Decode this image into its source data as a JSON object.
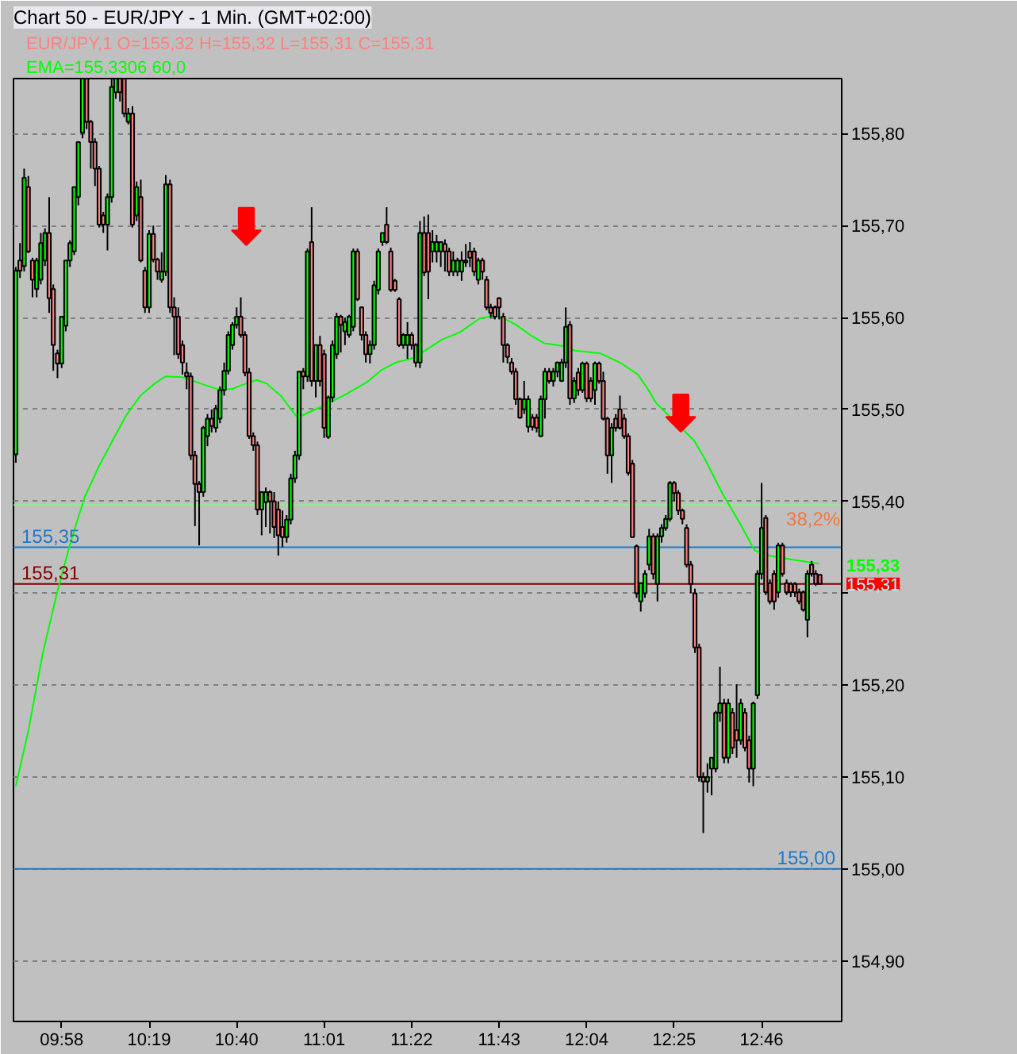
{
  "chart_data": {
    "type": "candlestick",
    "title": "Chart 50 - EUR/JPY - 1 Min. (GMT+02:00)",
    "annotations": [
      "EUR/JPY,1 O=155,32 H=155,32 L=155,31 C=155,31",
      "EMA=155,3306 60,0",
      {
        "text": "38,2%",
        "x": 12.973,
        "y": 155.396
      },
      {
        "text": "155,31",
        "x": 13.087,
        "y": 155.31
      }
    ],
    "xlim": [
      9.774,
      13.087
    ],
    "ylim": [
      154.834,
      155.86
    ],
    "xticks": [
      {
        "value": 9.9667,
        "label": "09:58"
      },
      {
        "value": 10.3167,
        "label": "10:19"
      },
      {
        "value": 10.6667,
        "label": "10:40"
      },
      {
        "value": 11.0167,
        "label": "11:01"
      },
      {
        "value": 11.3667,
        "label": "11:22"
      },
      {
        "value": 11.7167,
        "label": "11:43"
      },
      {
        "value": 12.0667,
        "label": "12:04"
      },
      {
        "value": 12.4167,
        "label": "12:25"
      },
      {
        "value": 12.7667,
        "label": "12:46"
      }
    ],
    "yticks": [
      {
        "value": 155.8,
        "label": "155,80"
      },
      {
        "value": 155.7,
        "label": "155,70"
      },
      {
        "value": 155.6,
        "label": "155,60"
      },
      {
        "value": 155.5,
        "label": "155,50"
      },
      {
        "value": 155.4,
        "label": "155,40"
      },
      {
        "value": 155.3,
        "label": null
      },
      {
        "value": 155.2,
        "label": "155,20"
      },
      {
        "value": 155.1,
        "label": "155,10"
      },
      {
        "value": 155.0,
        "label": "155,00"
      },
      {
        "value": 154.9,
        "label": "154,90"
      }
    ],
    "grid": "y",
    "ref_lines": [
      {
        "axis": "y",
        "value": 155.396,
        "color": "#90ee90"
      },
      {
        "axis": "y",
        "value": 155.35,
        "label": "155,35",
        "color": "#1e78c8"
      },
      {
        "axis": "y",
        "value": 155.31,
        "label": "155,31",
        "color": "#800000"
      },
      {
        "axis": "y",
        "value": 155.0,
        "label": "155,00",
        "color": "#1e78c8"
      }
    ],
    "x": [
      9.7833,
      9.8,
      9.8167,
      9.8333,
      9.85,
      9.8667,
      9.8833,
      9.9,
      9.9167,
      9.9333,
      9.95,
      9.9667,
      9.9833,
      10.0,
      10.0167,
      10.0333,
      10.05,
      10.0667,
      10.0833,
      10.1,
      10.1167,
      10.1333,
      10.15,
      10.1667,
      10.1833,
      10.2,
      10.2167,
      10.2333,
      10.25,
      10.2667,
      10.2833,
      10.3,
      10.3167,
      10.3333,
      10.35,
      10.3667,
      10.3833,
      10.4,
      10.4167,
      10.4333,
      10.45,
      10.4667,
      10.4833,
      10.5,
      10.5167,
      10.5333,
      10.55,
      10.5667,
      10.5833,
      10.6,
      10.6167,
      10.6333,
      10.65,
      10.6667,
      10.6833,
      10.7,
      10.7167,
      10.7333,
      10.75,
      10.7667,
      10.7833,
      10.8,
      10.8167,
      10.8333,
      10.85,
      10.8667,
      10.8833,
      10.9,
      10.9167,
      10.9333,
      10.95,
      10.9667,
      10.9833,
      11.0,
      11.0167,
      11.0333,
      11.05,
      11.0667,
      11.0833,
      11.1,
      11.1167,
      11.1333,
      11.15,
      11.1667,
      11.1833,
      11.2,
      11.2167,
      11.2333,
      11.25,
      11.2667,
      11.2833,
      11.3,
      11.3167,
      11.3333,
      11.35,
      11.3667,
      11.3833,
      11.4,
      11.4167,
      11.4333,
      11.45,
      11.4667,
      11.4833,
      11.5,
      11.5167,
      11.5333,
      11.55,
      11.5667,
      11.5833,
      11.6,
      11.6167,
      11.6333,
      11.65,
      11.6667,
      11.6833,
      11.7,
      11.7167,
      11.7333,
      11.75,
      11.7667,
      11.7833,
      11.8,
      11.8167,
      11.8333,
      11.85,
      11.8667,
      11.8833,
      11.9,
      11.9167,
      11.9333,
      11.95,
      11.9667,
      11.9833,
      12.0,
      12.0167,
      12.0333,
      12.05,
      12.0667,
      12.0833,
      12.1,
      12.1167,
      12.1333,
      12.15,
      12.1667,
      12.1833,
      12.2,
      12.2167,
      12.2333,
      12.25,
      12.2667,
      12.2833,
      12.3,
      12.3167,
      12.3333,
      12.35,
      12.3667,
      12.3833,
      12.4,
      12.4167,
      12.4333,
      12.45,
      12.4667,
      12.4833,
      12.5,
      12.5167,
      12.5333,
      12.55,
      12.5667,
      12.5833,
      12.6,
      12.6167,
      12.6333,
      12.65,
      12.6667,
      12.6833,
      12.7,
      12.7167,
      12.7333,
      12.75,
      12.7667,
      12.7833,
      12.8,
      12.8167,
      12.8333,
      12.85,
      12.8667,
      12.8833,
      12.9,
      12.9167,
      12.9333,
      12.95,
      12.9667,
      12.9833,
      13.0
    ],
    "ohlc": [
      [
        155.451,
        155.655,
        155.442,
        155.651
      ],
      [
        155.662,
        155.681,
        155.643,
        155.651
      ],
      [
        155.656,
        155.762,
        155.65,
        155.752
      ],
      [
        155.742,
        155.754,
        155.67,
        155.672
      ],
      [
        155.662,
        155.665,
        155.622,
        155.641
      ],
      [
        155.631,
        155.665,
        155.622,
        155.662
      ],
      [
        155.641,
        155.692,
        155.636,
        155.681
      ],
      [
        155.662,
        155.697,
        155.656,
        155.692
      ],
      [
        155.692,
        155.731,
        155.605,
        155.621
      ],
      [
        155.631,
        155.636,
        155.542,
        155.57
      ],
      [
        155.561,
        155.565,
        155.534,
        155.55
      ],
      [
        155.55,
        155.601,
        155.545,
        155.601
      ],
      [
        155.591,
        155.662,
        155.585,
        155.662
      ],
      [
        155.662,
        155.684,
        155.655,
        155.681
      ],
      [
        155.672,
        155.742,
        155.668,
        155.742
      ],
      [
        155.731,
        155.791,
        155.722,
        155.791
      ],
      [
        155.801,
        155.86,
        155.795,
        155.86
      ],
      [
        155.86,
        155.86,
        155.805,
        155.813
      ],
      [
        155.813,
        155.815,
        155.762,
        155.791
      ],
      [
        155.791,
        155.795,
        155.743,
        155.762
      ],
      [
        155.762,
        155.765,
        155.698,
        155.701
      ],
      [
        155.711,
        155.715,
        155.692,
        155.701
      ],
      [
        155.701,
        155.735,
        155.673,
        155.731
      ],
      [
        155.731,
        155.86,
        155.725,
        155.851
      ],
      [
        155.845,
        155.86,
        155.838,
        155.86
      ],
      [
        155.86,
        155.86,
        155.835,
        155.845
      ],
      [
        155.86,
        155.86,
        155.818,
        155.822
      ],
      [
        155.813,
        155.828,
        155.81,
        155.822
      ],
      [
        155.822,
        155.83,
        155.698,
        155.701
      ],
      [
        155.711,
        155.748,
        155.705,
        155.742
      ],
      [
        155.731,
        155.75,
        155.66,
        155.662
      ],
      [
        155.651,
        155.655,
        155.605,
        155.611
      ],
      [
        155.611,
        155.695,
        155.605,
        155.691
      ],
      [
        155.691,
        155.7,
        155.66,
        155.663
      ],
      [
        155.663,
        155.665,
        155.641,
        155.65
      ],
      [
        155.641,
        155.671,
        155.638,
        155.65
      ],
      [
        155.65,
        155.755,
        155.645,
        155.745
      ],
      [
        155.745,
        155.75,
        155.605,
        155.611
      ],
      [
        155.611,
        155.622,
        155.559,
        155.601
      ],
      [
        155.601,
        155.611,
        155.555,
        155.56
      ],
      [
        155.57,
        155.575,
        155.538,
        155.551
      ],
      [
        155.54,
        155.551,
        155.522,
        155.536
      ],
      [
        155.536,
        155.54,
        155.445,
        155.45
      ],
      [
        155.45,
        155.455,
        155.373,
        155.419
      ],
      [
        155.419,
        155.422,
        155.352,
        155.41
      ],
      [
        155.41,
        155.482,
        155.405,
        155.48
      ],
      [
        155.471,
        155.495,
        155.46,
        155.49
      ],
      [
        155.49,
        155.5,
        155.475,
        155.482
      ],
      [
        155.48,
        155.505,
        155.475,
        155.501
      ],
      [
        155.49,
        155.525,
        155.485,
        155.521
      ],
      [
        155.521,
        155.551,
        155.515,
        155.542
      ],
      [
        155.542,
        155.585,
        155.538,
        155.581
      ],
      [
        155.57,
        155.595,
        155.565,
        155.592
      ],
      [
        155.592,
        155.611,
        155.588,
        155.601
      ],
      [
        155.601,
        155.622,
        155.578,
        155.581
      ],
      [
        155.581,
        155.585,
        155.536,
        155.54
      ],
      [
        155.54,
        155.545,
        155.468,
        155.471
      ],
      [
        155.471,
        155.475,
        155.455,
        155.461
      ],
      [
        155.461,
        155.465,
        155.385,
        155.391
      ],
      [
        155.391,
        155.41,
        155.363,
        155.41
      ],
      [
        155.399,
        155.415,
        155.372,
        155.41
      ],
      [
        155.41,
        155.412,
        155.365,
        155.4
      ],
      [
        155.4,
        155.41,
        155.36,
        155.372
      ],
      [
        155.391,
        155.4,
        155.341,
        155.363
      ],
      [
        155.372,
        155.39,
        155.35,
        155.361
      ],
      [
        155.361,
        155.385,
        155.355,
        155.38
      ],
      [
        155.38,
        155.43,
        155.375,
        155.425
      ],
      [
        155.425,
        155.455,
        155.42,
        155.45
      ],
      [
        155.45,
        155.541,
        155.445,
        155.541
      ],
      [
        155.541,
        155.545,
        155.522,
        155.536
      ],
      [
        155.536,
        155.675,
        155.53,
        155.672
      ],
      [
        155.682,
        155.72,
        155.525,
        155.531
      ],
      [
        155.531,
        155.57,
        155.513,
        155.57
      ],
      [
        155.57,
        155.58,
        155.525,
        155.531
      ],
      [
        155.56,
        155.565,
        155.469,
        155.48
      ],
      [
        155.47,
        155.515,
        155.468,
        155.513
      ],
      [
        155.513,
        155.575,
        155.508,
        155.57
      ],
      [
        155.56,
        155.605,
        155.555,
        155.601
      ],
      [
        155.601,
        155.603,
        155.562,
        155.592
      ],
      [
        155.585,
        155.6,
        155.57,
        155.595
      ],
      [
        155.581,
        155.603,
        155.578,
        155.601
      ],
      [
        155.59,
        155.675,
        155.585,
        155.672
      ],
      [
        155.672,
        155.675,
        155.618,
        155.62
      ],
      [
        155.611,
        155.612,
        155.575,
        155.581
      ],
      [
        155.581,
        155.585,
        155.551,
        155.56
      ],
      [
        155.56,
        155.575,
        155.55,
        155.57
      ],
      [
        155.57,
        155.64,
        155.565,
        155.635
      ],
      [
        155.63,
        155.675,
        155.625,
        155.672
      ],
      [
        155.682,
        155.692,
        155.678,
        155.692
      ],
      [
        155.701,
        155.72,
        155.68,
        155.682
      ],
      [
        155.672,
        155.676,
        155.628,
        155.63
      ],
      [
        155.64,
        155.642,
        155.628,
        155.63
      ],
      [
        155.62,
        155.622,
        155.568,
        155.57
      ],
      [
        155.57,
        155.583,
        155.566,
        155.581
      ],
      [
        155.57,
        155.595,
        155.555,
        155.581
      ],
      [
        155.581,
        155.584,
        155.565,
        155.57
      ],
      [
        155.551,
        155.572,
        155.546,
        155.57
      ],
      [
        155.551,
        155.705,
        155.545,
        155.692
      ],
      [
        155.692,
        155.71,
        155.645,
        155.649
      ],
      [
        155.692,
        155.712,
        155.62,
        155.65
      ],
      [
        155.672,
        155.695,
        155.66,
        155.682
      ],
      [
        155.672,
        155.69,
        155.66,
        155.682
      ],
      [
        155.672,
        155.682,
        155.655,
        155.682
      ],
      [
        155.68,
        155.685,
        155.65,
        155.672
      ],
      [
        155.672,
        155.676,
        155.645,
        155.65
      ],
      [
        155.65,
        155.672,
        155.645,
        155.662
      ],
      [
        155.65,
        155.665,
        155.645,
        155.662
      ],
      [
        155.65,
        155.672,
        155.64,
        155.662
      ],
      [
        155.662,
        155.68,
        155.655,
        155.66
      ],
      [
        155.672,
        155.682,
        155.655,
        155.665
      ],
      [
        155.672,
        155.676,
        155.645,
        155.65
      ],
      [
        155.641,
        155.665,
        155.636,
        155.662
      ],
      [
        155.662,
        155.665,
        155.641,
        155.65
      ],
      [
        155.641,
        155.645,
        155.608,
        155.611
      ],
      [
        155.611,
        155.615,
        155.6,
        155.605
      ],
      [
        155.611,
        155.613,
        155.598,
        155.601
      ],
      [
        155.621,
        155.622,
        155.598,
        155.611
      ],
      [
        155.601,
        155.605,
        155.551,
        155.57
      ],
      [
        155.57,
        155.572,
        155.55,
        155.557
      ],
      [
        155.551,
        155.556,
        155.538,
        155.541
      ],
      [
        155.541,
        155.545,
        155.505,
        155.511
      ],
      [
        155.511,
        155.513,
        155.49,
        155.491
      ],
      [
        155.5,
        155.531,
        155.495,
        155.511
      ],
      [
        155.481,
        155.515,
        155.475,
        155.511
      ],
      [
        155.491,
        155.495,
        155.477,
        155.481
      ],
      [
        155.491,
        155.495,
        155.475,
        155.48
      ],
      [
        155.471,
        155.515,
        155.47,
        155.511
      ],
      [
        155.511,
        155.545,
        155.49,
        155.541
      ],
      [
        155.541,
        155.545,
        155.528,
        155.531
      ],
      [
        155.531,
        155.545,
        155.525,
        155.541
      ],
      [
        155.541,
        155.552,
        155.535,
        155.551
      ],
      [
        155.531,
        155.555,
        155.53,
        155.551
      ],
      [
        155.551,
        155.611,
        155.545,
        155.59
      ],
      [
        155.592,
        155.596,
        155.505,
        155.512
      ],
      [
        155.512,
        155.535,
        155.507,
        155.531
      ],
      [
        155.54,
        155.545,
        155.515,
        155.521
      ],
      [
        155.521,
        155.552,
        155.518,
        155.55
      ],
      [
        155.55,
        155.552,
        155.508,
        155.512
      ],
      [
        155.531,
        155.535,
        155.508,
        155.512
      ],
      [
        155.521,
        155.552,
        155.505,
        155.55
      ],
      [
        155.55,
        155.552,
        155.528,
        155.531
      ],
      [
        155.531,
        155.541,
        155.488,
        155.49
      ],
      [
        155.49,
        155.492,
        155.43,
        155.45
      ],
      [
        155.45,
        155.485,
        155.42,
        155.48
      ],
      [
        155.49,
        155.495,
        155.476,
        155.48
      ],
      [
        155.5,
        155.515,
        155.478,
        155.48
      ],
      [
        155.49,
        155.495,
        155.468,
        155.471
      ],
      [
        155.471,
        155.474,
        155.428,
        155.431
      ],
      [
        155.441,
        155.445,
        155.36,
        155.361
      ],
      [
        155.351,
        155.353,
        155.295,
        155.3
      ],
      [
        155.291,
        155.311,
        155.28,
        155.311
      ],
      [
        155.3,
        155.325,
        155.295,
        155.321
      ],
      [
        155.331,
        155.37,
        155.325,
        155.362
      ],
      [
        155.362,
        155.365,
        155.315,
        155.321
      ],
      [
        155.31,
        155.365,
        155.291,
        155.362
      ],
      [
        155.362,
        155.375,
        155.355,
        155.371
      ],
      [
        155.371,
        155.385,
        155.368,
        155.381
      ],
      [
        155.381,
        155.422,
        155.378,
        155.42
      ],
      [
        155.42,
        155.422,
        155.4,
        155.409
      ],
      [
        155.409,
        155.412,
        155.385,
        155.39
      ],
      [
        155.39,
        155.392,
        155.375,
        155.381
      ],
      [
        155.371,
        155.375,
        155.328,
        155.331
      ],
      [
        155.331,
        155.335,
        155.3,
        155.31
      ],
      [
        155.3,
        155.305,
        155.235,
        155.241
      ],
      [
        155.241,
        155.245,
        155.095,
        155.1
      ],
      [
        155.1,
        155.105,
        155.039,
        155.095
      ],
      [
        155.095,
        155.115,
        155.083,
        155.1
      ],
      [
        155.109,
        155.121,
        155.08,
        155.121
      ],
      [
        155.109,
        155.172,
        155.105,
        155.17
      ],
      [
        155.17,
        155.22,
        155.16,
        155.18
      ],
      [
        155.18,
        155.185,
        155.115,
        155.121
      ],
      [
        155.121,
        155.185,
        155.115,
        155.18
      ],
      [
        155.17,
        155.175,
        155.125,
        155.132
      ],
      [
        155.151,
        155.201,
        155.121,
        155.14
      ],
      [
        155.14,
        155.185,
        155.135,
        155.18
      ],
      [
        155.17,
        155.175,
        155.128,
        155.132
      ],
      [
        155.14,
        155.145,
        155.094,
        155.109
      ],
      [
        155.109,
        155.182,
        155.09,
        155.18
      ],
      [
        155.189,
        155.325,
        155.185,
        155.321
      ],
      [
        155.321,
        155.42,
        155.315,
        155.371
      ],
      [
        155.382,
        155.385,
        155.298,
        155.301
      ],
      [
        155.311,
        155.315,
        155.288,
        155.291
      ],
      [
        155.321,
        155.325,
        155.282,
        155.291
      ],
      [
        155.301,
        155.355,
        155.295,
        155.352
      ],
      [
        155.352,
        155.355,
        155.318,
        155.321
      ],
      [
        155.311,
        155.315,
        155.298,
        155.301
      ],
      [
        155.31,
        155.312,
        155.296,
        155.301
      ],
      [
        155.31,
        155.312,
        155.296,
        155.301
      ],
      [
        155.301,
        155.305,
        155.288,
        155.291
      ],
      [
        155.301,
        155.303,
        155.28,
        155.282
      ],
      [
        155.271,
        155.325,
        155.252,
        155.321
      ],
      [
        155.331,
        155.335,
        155.318,
        155.321
      ],
      [
        155.321,
        155.325,
        155.308,
        155.31
      ],
      [
        155.32,
        155.32,
        155.31,
        155.31
      ]
    ],
    "colors": [
      "#00ff00",
      "#ff8080",
      "#00ff00",
      "#ff8080",
      "#ff8080",
      "#00ff00",
      "#00ff00",
      "#00ff00",
      "#ff8080",
      "#ff8080",
      "#ff8080",
      "#00ff00",
      "#00ff00",
      "#00ff00",
      "#00ff00",
      "#00ff00",
      "#00ff00",
      "#ff8080",
      "#ff8080",
      "#ff8080",
      "#ff8080",
      "#ff8080",
      "#00ff00",
      "#00ff00",
      "#00ff00",
      "#ff8080",
      "#ff8080",
      "#00ff00",
      "#ff8080",
      "#00ff00",
      "#ff8080",
      "#ff8080",
      "#00ff00",
      "#ff8080",
      "#ff8080",
      "#00ff00",
      "#00ff00",
      "#ff8080",
      "#ff8080",
      "#ff8080",
      "#ff8080",
      "#ff8080",
      "#ff8080",
      "#ff8080",
      "#ff8080",
      "#00ff00",
      "#00ff00",
      "#ff8080",
      "#00ff00",
      "#00ff00",
      "#00ff00",
      "#00ff00",
      "#00ff00",
      "#00ff00",
      "#ff8080",
      "#ff8080",
      "#ff8080",
      "#ff8080",
      "#ff8080",
      "#00ff00",
      "#00ff00",
      "#ff8080",
      "#ff8080",
      "#ff8080",
      "#ff8080",
      "#00ff00",
      "#00ff00",
      "#00ff00",
      "#00ff00",
      "#ff8080",
      "#00ff00",
      "#ff8080",
      "#00ff00",
      "#ff8080",
      "#ff8080",
      "#00ff00",
      "#00ff00",
      "#00ff00",
      "#ff8080",
      "#00ff00",
      "#00ff00",
      "#00ff00",
      "#ff8080",
      "#ff8080",
      "#ff8080",
      "#00ff00",
      "#00ff00",
      "#00ff00",
      "#00ff00",
      "#ff8080",
      "#ff8080",
      "#ff8080",
      "#ff8080",
      "#00ff00",
      "#00ff00",
      "#ff8080",
      "#00ff00",
      "#00ff00",
      "#ff8080",
      "#ff8080",
      "#00ff00",
      "#00ff00",
      "#00ff00",
      "#ff8080",
      "#ff8080",
      "#00ff00",
      "#00ff00",
      "#00ff00",
      "#ff8080",
      "#ff8080",
      "#ff8080",
      "#00ff00",
      "#ff8080",
      "#ff8080",
      "#ff8080",
      "#ff8080",
      "#ff8080",
      "#ff8080",
      "#ff8080",
      "#ff8080",
      "#ff8080",
      "#ff8080",
      "#00ff00",
      "#00ff00",
      "#ff8080",
      "#ff8080",
      "#00ff00",
      "#00ff00",
      "#ff8080",
      "#00ff00",
      "#00ff00",
      "#00ff00",
      "#00ff00",
      "#ff8080",
      "#00ff00",
      "#ff8080",
      "#00ff00",
      "#ff8080",
      "#ff8080",
      "#00ff00",
      "#ff8080",
      "#ff8080",
      "#ff8080",
      "#00ff00",
      "#ff8080",
      "#ff8080",
      "#ff8080",
      "#ff8080",
      "#ff8080",
      "#ff8080",
      "#00ff00",
      "#00ff00",
      "#00ff00",
      "#ff8080",
      "#00ff00",
      "#00ff00",
      "#00ff00",
      "#00ff00",
      "#ff8080",
      "#ff8080",
      "#ff8080",
      "#ff8080",
      "#ff8080",
      "#ff8080",
      "#ff8080",
      "#ff8080",
      "#00ff00",
      "#00ff00",
      "#00ff00",
      "#00ff00",
      "#ff8080",
      "#00ff00",
      "#ff8080",
      "#ff8080",
      "#00ff00",
      "#ff8080",
      "#ff8080",
      "#00ff00",
      "#00ff00",
      "#00ff00",
      "#ff8080",
      "#ff8080",
      "#ff8080",
      "#00ff00",
      "#ff8080",
      "#ff8080",
      "#ff8080",
      "#ff8080",
      "#ff8080",
      "#ff8080",
      "#00ff00",
      "#ff8080",
      "#ff8080",
      "#ff8080"
    ],
    "series": [
      {
        "type": "line",
        "color": "#00ff00",
        "x": [
          9.783,
          9.834,
          9.89,
          9.946,
          10.002,
          10.058,
          10.114,
          10.17,
          10.226,
          10.282,
          10.338,
          10.383,
          10.45,
          10.535,
          10.591,
          10.647,
          10.703,
          10.748,
          10.787,
          10.843,
          10.91,
          10.998,
          11.095,
          11.19,
          11.247,
          11.303,
          11.375,
          11.432,
          11.488,
          11.56,
          11.639,
          11.695,
          11.729,
          11.785,
          11.841,
          11.897,
          11.975,
          12.02,
          12.121,
          12.2,
          12.272,
          12.312,
          12.345,
          12.497,
          12.536,
          12.609,
          12.682,
          12.738,
          12.777,
          12.833,
          12.928,
          12.996
        ],
        "values": [
          155.09,
          155.151,
          155.233,
          155.298,
          155.355,
          155.404,
          155.437,
          155.466,
          155.494,
          155.515,
          155.528,
          155.536,
          155.535,
          155.527,
          155.522,
          155.522,
          155.528,
          155.532,
          155.528,
          155.515,
          155.491,
          155.502,
          155.515,
          155.53,
          155.543,
          155.551,
          155.556,
          155.566,
          155.576,
          155.584,
          155.599,
          155.602,
          155.6,
          155.592,
          155.581,
          155.572,
          155.569,
          155.564,
          155.561,
          155.551,
          155.538,
          155.522,
          155.507,
          155.466,
          155.448,
          155.409,
          155.375,
          155.347,
          155.342,
          155.339,
          155.335,
          155.332
        ],
        "value_labels": [
          null,
          null,
          null,
          null,
          null,
          null,
          null,
          null,
          null,
          null,
          null,
          null,
          null,
          null,
          null,
          null,
          null,
          null,
          null,
          null,
          null,
          null,
          null,
          null,
          null,
          null,
          null,
          null,
          null,
          null,
          null,
          null,
          null,
          null,
          null,
          null,
          null,
          null,
          null,
          null,
          null,
          null,
          null,
          null,
          null,
          null,
          null,
          null,
          null,
          null,
          null,
          "155,33"
        ]
      },
      {
        "type": "scatter",
        "color": "#ff0000",
        "x": [
          10.7055,
          12.4433
        ],
        "values": [
          155.699,
          155.496
        ]
      }
    ]
  }
}
